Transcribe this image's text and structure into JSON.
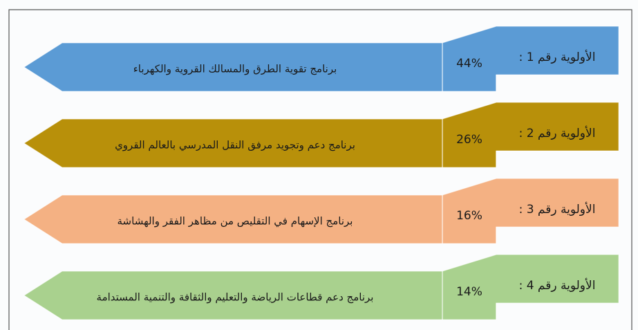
{
  "items": [
    {
      "label": "الأولوية رقم 1 :",
      "percent": "44%",
      "program": "برنامج تقوية الطرق والمسالك القروية والكهرباء",
      "color": "#5b9bd5"
    },
    {
      "label": "الأولوية رقم 2 :",
      "percent": "26%",
      "program": "برنامج  دعم وتجويد مرفق  النقل المدرسي بالعالم القروي",
      "color": "#b8900a"
    },
    {
      "label": "الأولوية رقم 3 :",
      "percent": "16%",
      "program": "برنامج الإسهام في التقليص من مظاهر الفقر والهشاشة",
      "color": "#f4b183"
    },
    {
      "label": "الأولوية رقم 4 :",
      "percent": "14%",
      "program": "برنامج دعم قطاعات الرياضة والتعليم والثقافة والتنمية المستدامة",
      "color": "#a9d18e"
    }
  ]
}
